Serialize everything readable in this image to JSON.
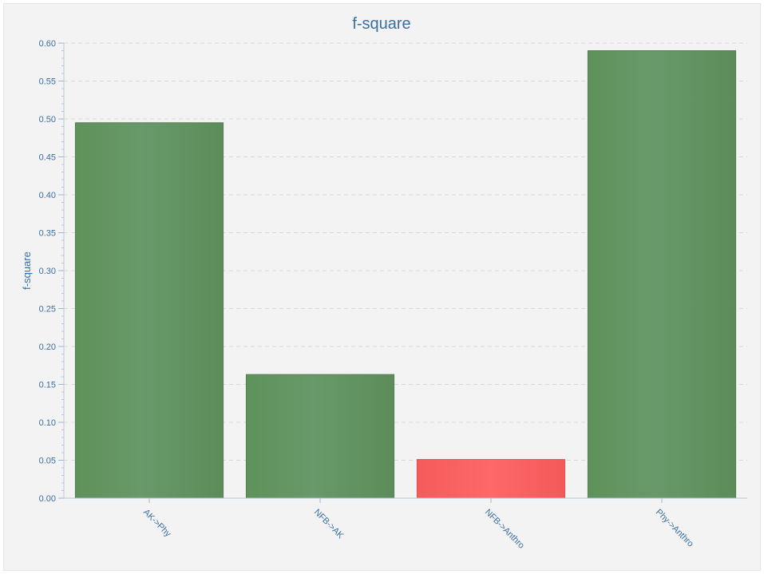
{
  "chart_data": {
    "type": "bar",
    "title": "f-square",
    "xlabel": "",
    "ylabel": "f-square",
    "categories": [
      "AK->Phy",
      "NFB->AK",
      "NFB->Anthro",
      "Phy->Anthro"
    ],
    "values": [
      0.495,
      0.163,
      0.051,
      0.59
    ],
    "ylim": [
      0,
      0.6
    ],
    "yticks": [
      "0.00",
      "0.05",
      "0.10",
      "0.15",
      "0.20",
      "0.25",
      "0.30",
      "0.35",
      "0.40",
      "0.45",
      "0.50",
      "0.55",
      "0.60"
    ],
    "grid": true,
    "bar_colors": [
      "#64965f",
      "#64965f",
      "#fc6464",
      "#64965f"
    ],
    "axis_color": "#3b6fa3",
    "background": "#f3f3f3"
  }
}
